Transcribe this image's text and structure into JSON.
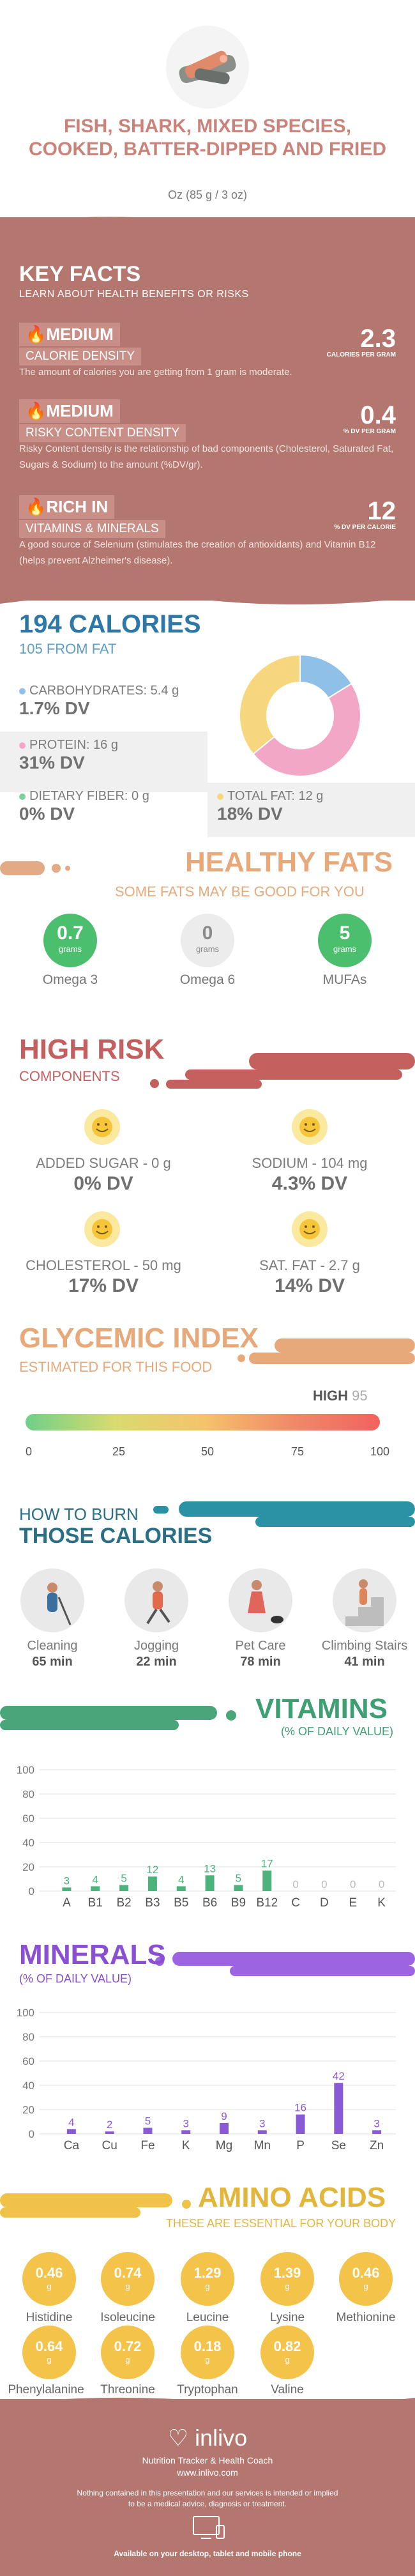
{
  "header": {
    "title": "FISH, SHARK, MIXED SPECIES, COOKED, BATTER-DIPPED AND FRIED",
    "serving": "Oz (85 g / 3 oz)"
  },
  "key_facts": {
    "title": "KEY FACTS",
    "subtitle": "LEARN ABOUT HEALTH BENEFITS OR RISKS",
    "items": [
      {
        "level": "MEDIUM",
        "name": "CALORIE DENSITY",
        "value": "2.3",
        "unit": "CALORIES PER GRAM",
        "desc": "The amount of calories you are getting from 1 gram is moderate."
      },
      {
        "level": "MEDIUM",
        "name": "RISKY CONTENT DENSITY",
        "value": "0.4",
        "unit": "% DV PER GRAM",
        "desc": "Risky Content density is the relationship of bad components (Cholesterol, Saturated Fat, Sugars & Sodium) to the amount (%DV/gr)."
      },
      {
        "level": "RICH  IN",
        "name": "VITAMINS & MINERALS",
        "value": "12",
        "unit": "% DV PER CALORIE",
        "desc": "A good source of Selenium (stimulates the creation of antioxidants) and Vitamin B12 (helps prevent Alzheimer's disease)."
      }
    ]
  },
  "calories": {
    "title": "194 CALORIES",
    "subtitle": "105 FROM FAT",
    "carbs_label": "CARBOHYDRATES: 5.4 g",
    "carbs_dv": "1.7% DV",
    "protein_label": "PROTEIN: 16 g",
    "protein_dv": "31% DV",
    "fiber_label": "DIETARY FIBER: 0 g",
    "fiber_dv": "0% DV",
    "fat_label": "TOTAL FAT: 12 g",
    "fat_dv": "18% DV",
    "colors": {
      "carbs": "#8fc0e8",
      "protein": "#f2a7c6",
      "fiber": "#7ed09a",
      "fat": "#f7d77e"
    },
    "donut_grams": {
      "carbs": 5.4,
      "protein": 16,
      "fat": 12
    }
  },
  "healthy_fats": {
    "title": "HEALTHY FATS",
    "subtitle": "SOME FATS MAY BE GOOD FOR YOU",
    "unit": "grams",
    "items": [
      {
        "value": "0.7",
        "label": "Omega 3",
        "color": "#4cbf6e"
      },
      {
        "value": "0",
        "label": "Omega 6",
        "color": "#ececec"
      },
      {
        "value": "5",
        "label": "MUFAs",
        "color": "#4cbf6e"
      }
    ]
  },
  "high_risk": {
    "title": "HIGH RISK",
    "subtitle": "COMPONENTS",
    "items": [
      {
        "label": "ADDED SUGAR - 0 g",
        "dv": "0% DV"
      },
      {
        "label": "SODIUM - 104 mg",
        "dv": "4.3% DV"
      },
      {
        "label": "CHOLESTEROL - 50 mg",
        "dv": "17% DV"
      },
      {
        "label": "SAT. FAT - 2.7 g",
        "dv": "14% DV"
      }
    ]
  },
  "glycemic": {
    "title": "GLYCEMIC INDEX",
    "subtitle": "ESTIMATED FOR THIS FOOD",
    "level": "HIGH",
    "value": "95",
    "ticks": [
      "0",
      "25",
      "50",
      "75",
      "100"
    ]
  },
  "burn": {
    "title_1": "HOW TO BURN",
    "title_2": "THOSE CALORIES",
    "items": [
      {
        "label": "Cleaning",
        "time": "65 min"
      },
      {
        "label": "Jogging",
        "time": "22 min"
      },
      {
        "label": "Pet Care",
        "time": "78 min"
      },
      {
        "label": "Climbing Stairs",
        "time": "41 min"
      }
    ]
  },
  "vitamins": {
    "title": "VITAMINS",
    "subtitle": "(% OF DAILY VALUE)",
    "chart_data": {
      "type": "bar",
      "categories": [
        "A",
        "B1",
        "B2",
        "B3",
        "B5",
        "B6",
        "B9",
        "B12",
        "C",
        "D",
        "E",
        "K"
      ],
      "values": [
        3,
        4,
        5,
        12,
        4,
        13,
        5,
        17,
        0,
        0,
        0,
        0
      ],
      "ylim": [
        0,
        100
      ],
      "yticks": [
        "0",
        "20",
        "40",
        "60",
        "80",
        "100"
      ],
      "color": "#4cb37c"
    }
  },
  "minerals": {
    "title": "MINERALS",
    "subtitle": "(% OF DAILY VALUE)",
    "chart_data": {
      "type": "bar",
      "categories": [
        "Ca",
        "Cu",
        "Fe",
        "K",
        "Mg",
        "Mn",
        "P",
        "Se",
        "Zn"
      ],
      "values": [
        4,
        2,
        5,
        3,
        9,
        3,
        16,
        42,
        3
      ],
      "ylim": [
        0,
        100
      ],
      "yticks": [
        "0",
        "20",
        "40",
        "60",
        "80",
        "100"
      ],
      "color": "#8a5ad6"
    }
  },
  "amino": {
    "title": "AMINO ACIDS",
    "subtitle": "THESE ARE ESSENTIAL FOR YOUR BODY",
    "unit": "g",
    "items": [
      {
        "value": "0.46",
        "label": "Histidine"
      },
      {
        "value": "0.74",
        "label": "Isoleucine"
      },
      {
        "value": "1.29",
        "label": "Leucine"
      },
      {
        "value": "1.39",
        "label": "Lysine"
      },
      {
        "value": "0.46",
        "label": "Methionine"
      },
      {
        "value": "0.64",
        "label": "Phenylalanine"
      },
      {
        "value": "0.72",
        "label": "Threonine"
      },
      {
        "value": "0.18",
        "label": "Tryptophan"
      },
      {
        "value": "0.82",
        "label": "Valine"
      }
    ]
  },
  "footer": {
    "brand": "inlivo",
    "tagline": "Nutrition Tracker & Health Coach",
    "url": "www.inlivo.com",
    "disclaimer_1": "Nothing contained in this presentation and our services is intended or implied",
    "disclaimer_2": "to be a medical advice, diagnosis or treatment.",
    "available": "Available on your desktop, tablet and mobile phone"
  }
}
